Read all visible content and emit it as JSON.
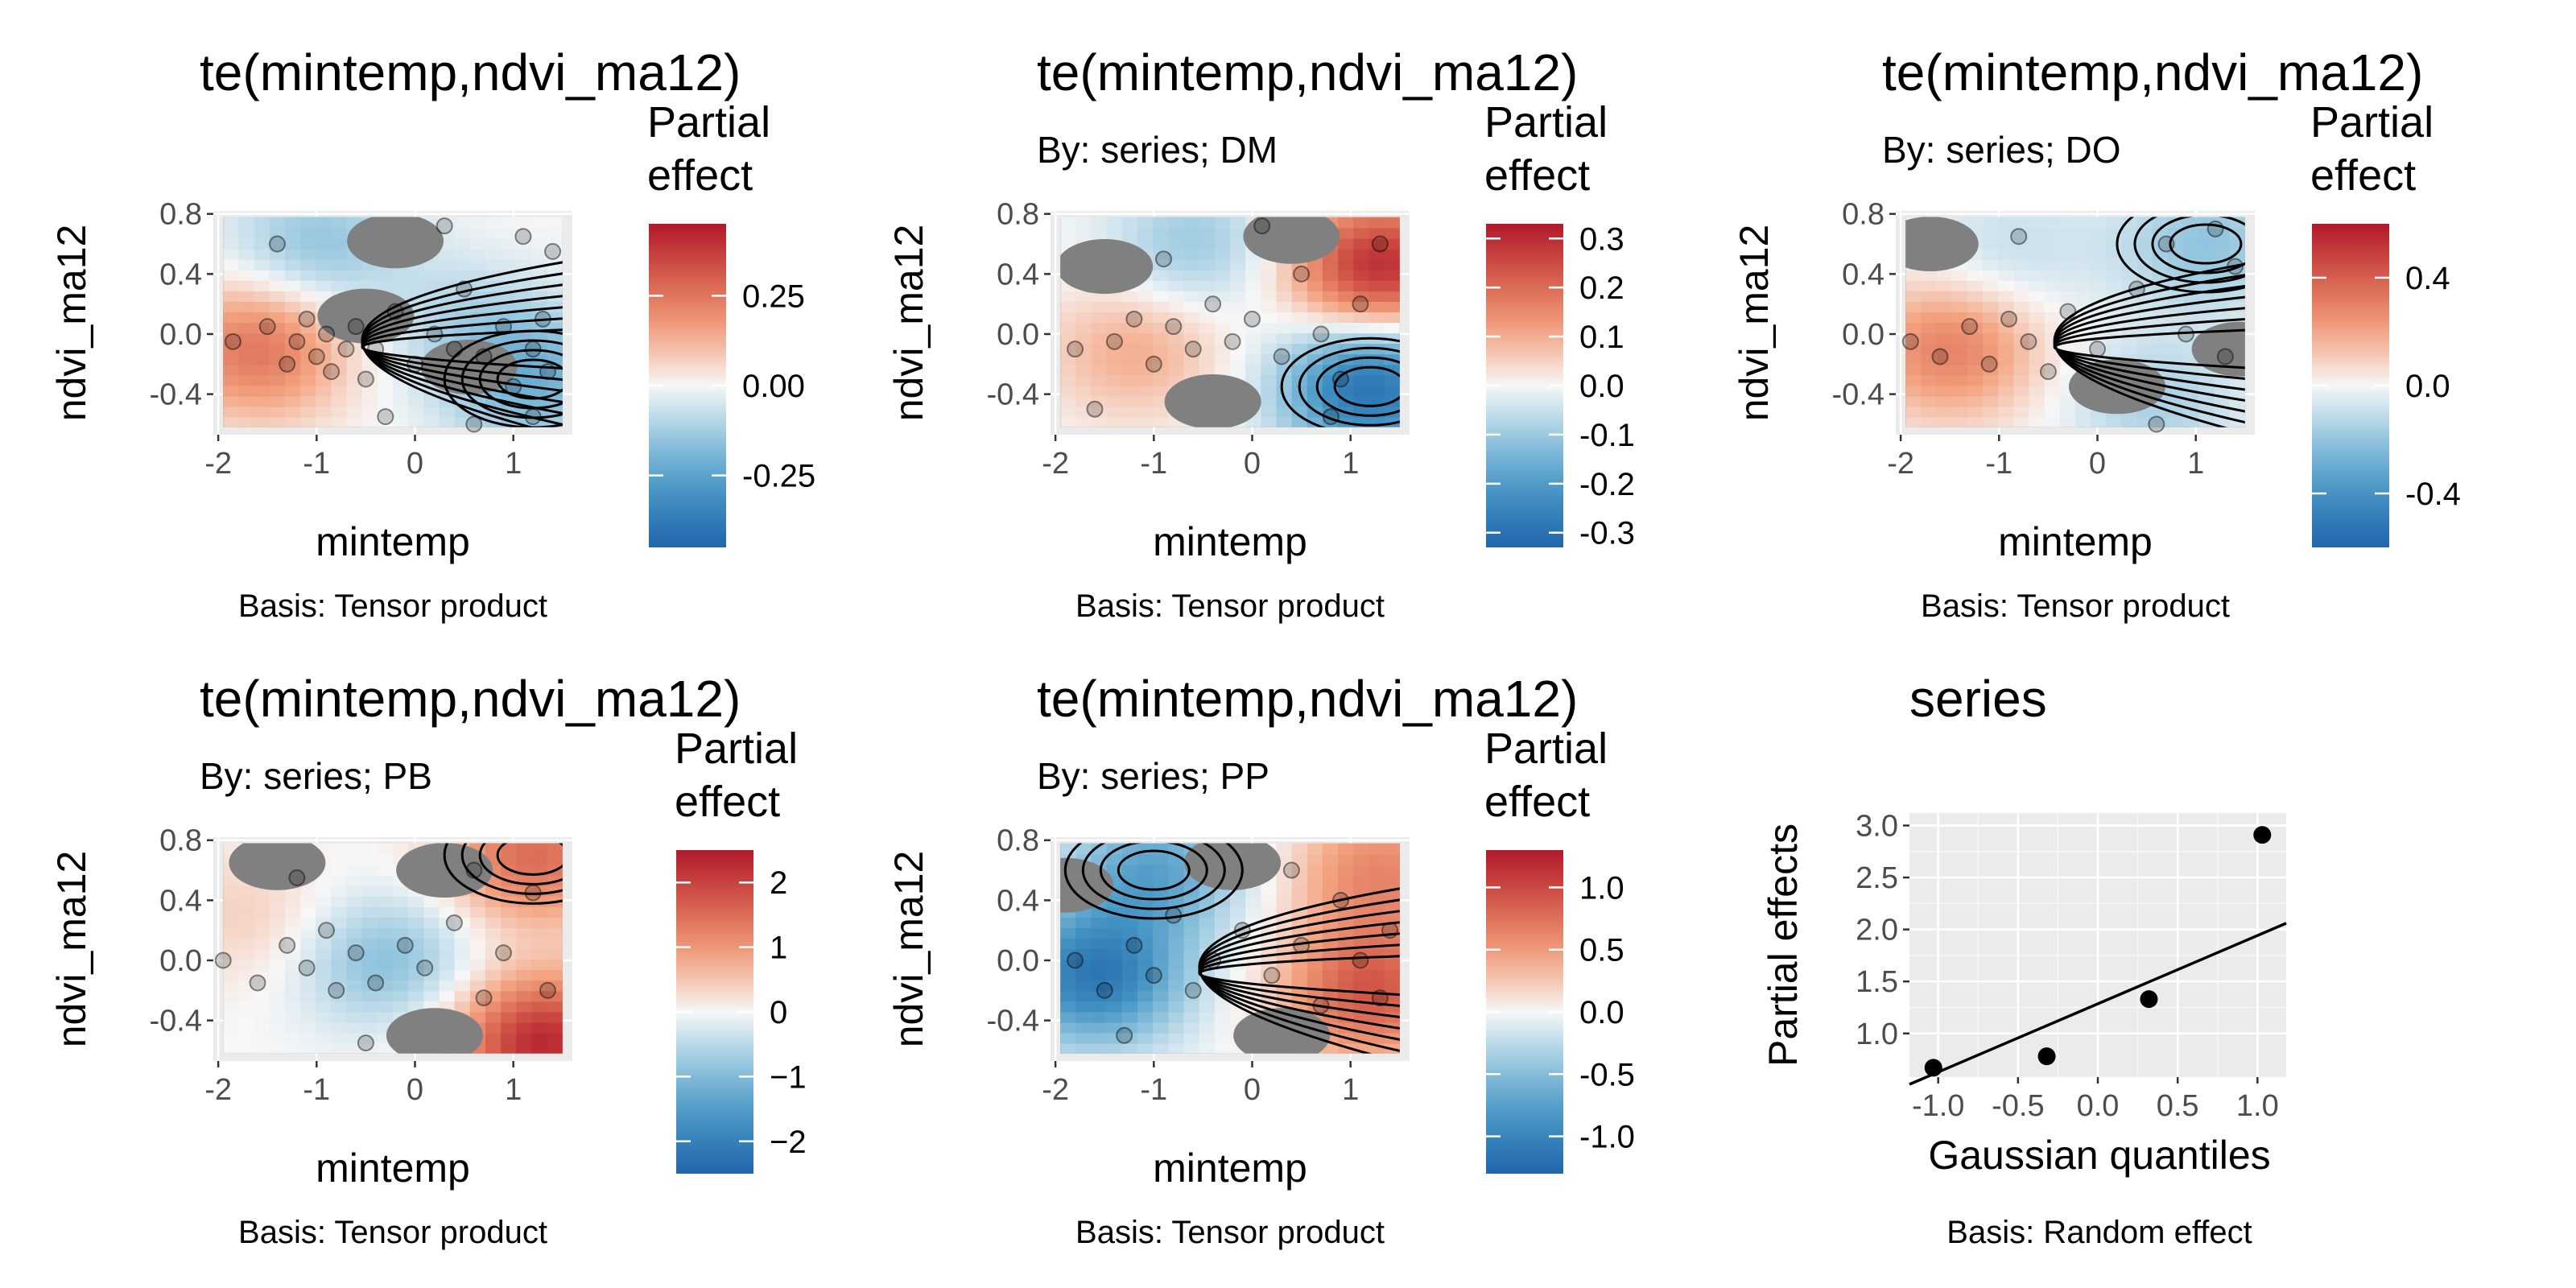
{
  "chart_data": [
    {
      "type": "heatmap",
      "title": "te(mintemp,ndvi_ma12)",
      "subtitle": "",
      "xlabel": "mintemp",
      "ylabel": "ndvi_ma12",
      "caption": "Basis: Tensor product",
      "legend_title": [
        "Partial",
        "effect"
      ],
      "xlim": [
        -2.05,
        1.6
      ],
      "ylim": [
        -0.67,
        0.82
      ],
      "xticks": [
        -2,
        -1,
        0,
        1
      ],
      "yticks": [
        -0.4,
        0.0,
        0.4,
        0.8
      ],
      "ytick_labels": [
        "-0.4",
        "0.0",
        "0.4",
        "0.8"
      ],
      "legend_range": [
        -0.45,
        0.45
      ],
      "legend_ticks": [
        0.25,
        0.0,
        -0.25
      ],
      "legend_tick_labels": [
        "0.25",
        "0.00",
        "-0.25"
      ],
      "palette": "RdBu diverging (red = positive, blue = negative)",
      "surface": {
        "hotspots": [
          {
            "x": -1.6,
            "y": -0.1,
            "value": 0.25
          },
          {
            "x": 1.2,
            "y": -0.3,
            "value": -0.2
          },
          {
            "x": -1.0,
            "y": 0.6,
            "value": -0.15
          },
          {
            "x": 0.5,
            "y": 0.1,
            "value": -0.08
          }
        ],
        "missing_regions": [
          {
            "x": -0.2,
            "y": 0.62
          },
          {
            "x": 0.55,
            "y": -0.22
          },
          {
            "x": -0.5,
            "y": 0.12
          }
        ]
      },
      "points": [
        [
          -1.85,
          -0.05
        ],
        [
          -1.5,
          0.05
        ],
        [
          -1.3,
          -0.2
        ],
        [
          -1.2,
          -0.05
        ],
        [
          -1.1,
          0.1
        ],
        [
          -1.0,
          -0.15
        ],
        [
          -0.9,
          0.0
        ],
        [
          -0.85,
          -0.25
        ],
        [
          -0.7,
          -0.1
        ],
        [
          -0.6,
          0.05
        ],
        [
          -0.5,
          -0.3
        ],
        [
          -0.4,
          -0.1
        ],
        [
          -0.2,
          0.15
        ],
        [
          0.0,
          -0.2
        ],
        [
          0.2,
          0.0
        ],
        [
          0.4,
          -0.1
        ],
        [
          0.5,
          0.3
        ],
        [
          0.7,
          -0.15
        ],
        [
          0.9,
          0.05
        ],
        [
          1.0,
          -0.35
        ],
        [
          1.1,
          0.65
        ],
        [
          1.2,
          -0.1
        ],
        [
          1.3,
          0.1
        ],
        [
          1.35,
          -0.25
        ],
        [
          1.4,
          0.55
        ],
        [
          0.3,
          0.72
        ],
        [
          -1.4,
          0.6
        ],
        [
          -0.3,
          -0.55
        ],
        [
          0.6,
          -0.6
        ],
        [
          1.2,
          -0.55
        ]
      ]
    },
    {
      "type": "heatmap",
      "title": "te(mintemp,ndvi_ma12)",
      "subtitle": "By: series; DM",
      "xlabel": "mintemp",
      "ylabel": "ndvi_ma12",
      "caption": "Basis: Tensor product",
      "legend_title": [
        "Partial",
        "effect"
      ],
      "xlim": [
        -2.05,
        1.6
      ],
      "ylim": [
        -0.67,
        0.82
      ],
      "xticks": [
        -2,
        -1,
        0,
        1
      ],
      "yticks": [
        -0.4,
        0.0,
        0.4,
        0.8
      ],
      "ytick_labels": [
        "-0.4",
        "0.0",
        "0.4",
        "0.8"
      ],
      "legend_range": [
        -0.33,
        0.33
      ],
      "legend_ticks": [
        0.3,
        0.2,
        0.1,
        0.0,
        -0.1,
        -0.2,
        -0.3
      ],
      "legend_tick_labels": [
        "0.3",
        "0.2",
        "0.1",
        "0.0",
        "-0.1",
        "-0.2",
        "-0.3"
      ],
      "palette": "RdBu diverging (red = positive, blue = negative)",
      "surface": {
        "hotspots": [
          {
            "x": 1.3,
            "y": 0.45,
            "value": 0.3
          },
          {
            "x": 1.2,
            "y": -0.35,
            "value": -0.3
          },
          {
            "x": -1.2,
            "y": -0.1,
            "value": 0.1
          },
          {
            "x": -0.6,
            "y": 0.6,
            "value": -0.1
          }
        ],
        "missing_regions": [
          {
            "x": -1.5,
            "y": 0.45
          },
          {
            "x": 0.4,
            "y": 0.65
          },
          {
            "x": -0.4,
            "y": -0.45
          }
        ]
      },
      "points": [
        [
          -1.8,
          -0.1
        ],
        [
          -1.4,
          -0.05
        ],
        [
          -1.2,
          0.1
        ],
        [
          -1.0,
          -0.2
        ],
        [
          -0.8,
          0.05
        ],
        [
          -0.6,
          -0.1
        ],
        [
          -0.4,
          0.2
        ],
        [
          -0.2,
          -0.05
        ],
        [
          0.0,
          0.1
        ],
        [
          0.3,
          -0.15
        ],
        [
          0.5,
          0.4
        ],
        [
          0.7,
          0.0
        ],
        [
          0.9,
          -0.3
        ],
        [
          1.1,
          0.2
        ],
        [
          1.3,
          0.6
        ],
        [
          -0.9,
          0.5
        ],
        [
          0.1,
          0.72
        ],
        [
          -1.6,
          -0.5
        ],
        [
          0.8,
          -0.55
        ]
      ]
    },
    {
      "type": "heatmap",
      "title": "te(mintemp,ndvi_ma12)",
      "subtitle": "By: series; DO",
      "xlabel": "mintemp",
      "ylabel": "ndvi_ma12",
      "caption": "Basis: Tensor product",
      "legend_title": [
        "Partial",
        "effect"
      ],
      "xlim": [
        -2.05,
        1.6
      ],
      "ylim": [
        -0.67,
        0.82
      ],
      "xticks": [
        -2,
        -1,
        0,
        1
      ],
      "yticks": [
        -0.4,
        0.0,
        0.4,
        0.8
      ],
      "ytick_labels": [
        "-0.4",
        "0.0",
        "0.4",
        "0.8"
      ],
      "legend_range": [
        -0.6,
        0.6
      ],
      "legend_ticks": [
        0.4,
        0.0,
        -0.4
      ],
      "legend_tick_labels": [
        "0.4",
        "0.0",
        "-0.4"
      ],
      "palette": "RdBu diverging (red = positive, blue = negative)",
      "surface": {
        "hotspots": [
          {
            "x": -1.5,
            "y": -0.1,
            "value": 0.3
          },
          {
            "x": 1.1,
            "y": 0.6,
            "value": -0.2
          },
          {
            "x": 0.6,
            "y": -0.45,
            "value": -0.15
          },
          {
            "x": -0.9,
            "y": 0.55,
            "value": -0.1
          }
        ],
        "missing_regions": [
          {
            "x": -1.7,
            "y": 0.6
          },
          {
            "x": 0.2,
            "y": -0.35
          },
          {
            "x": 1.45,
            "y": -0.1
          }
        ]
      },
      "points": [
        [
          -1.9,
          -0.05
        ],
        [
          -1.6,
          -0.15
        ],
        [
          -1.3,
          0.05
        ],
        [
          -1.1,
          -0.2
        ],
        [
          -0.9,
          0.1
        ],
        [
          -0.7,
          -0.05
        ],
        [
          -0.5,
          -0.25
        ],
        [
          -0.3,
          0.15
        ],
        [
          0.0,
          -0.1
        ],
        [
          0.4,
          0.3
        ],
        [
          0.7,
          0.6
        ],
        [
          0.9,
          0.0
        ],
        [
          1.2,
          0.7
        ],
        [
          1.3,
          -0.15
        ],
        [
          1.4,
          0.45
        ],
        [
          -0.8,
          0.65
        ],
        [
          0.6,
          -0.6
        ]
      ]
    },
    {
      "type": "heatmap",
      "title": "te(mintemp,ndvi_ma12)",
      "subtitle": "By: series; PB",
      "xlabel": "mintemp",
      "ylabel": "ndvi_ma12",
      "caption": "Basis: Tensor product",
      "legend_title": [
        "Partial",
        "effect"
      ],
      "xlim": [
        -2.05,
        1.6
      ],
      "ylim": [
        -0.67,
        0.82
      ],
      "xticks": [
        -2,
        -1,
        0,
        1
      ],
      "yticks": [
        -0.4,
        0.0,
        0.4,
        0.8
      ],
      "ytick_labels": [
        "-0.4",
        "0.0",
        "0.4",
        "0.8"
      ],
      "legend_range": [
        -2.5,
        2.5
      ],
      "legend_ticks": [
        2,
        1,
        0,
        -1,
        -2
      ],
      "legend_tick_labels": [
        "2",
        "1",
        "0",
        "−1",
        "−2"
      ],
      "palette": "RdBu diverging (red = positive, blue = negative)",
      "surface": {
        "hotspots": [
          {
            "x": 1.3,
            "y": -0.55,
            "value": 2.3
          },
          {
            "x": 1.2,
            "y": 0.7,
            "value": 1.5
          },
          {
            "x": -0.3,
            "y": 0.0,
            "value": -0.9
          },
          {
            "x": -1.7,
            "y": 0.3,
            "value": 0.4
          }
        ],
        "missing_regions": [
          {
            "x": -1.4,
            "y": 0.65
          },
          {
            "x": 0.3,
            "y": 0.6
          },
          {
            "x": 0.2,
            "y": -0.5
          }
        ]
      },
      "points": [
        [
          -1.95,
          0.0
        ],
        [
          -1.6,
          -0.15
        ],
        [
          -1.3,
          0.1
        ],
        [
          -1.1,
          -0.05
        ],
        [
          -0.9,
          0.2
        ],
        [
          -0.8,
          -0.2
        ],
        [
          -0.6,
          0.05
        ],
        [
          -0.4,
          -0.15
        ],
        [
          -0.1,
          0.1
        ],
        [
          0.1,
          -0.05
        ],
        [
          0.4,
          0.25
        ],
        [
          0.7,
          -0.25
        ],
        [
          0.9,
          0.05
        ],
        [
          1.2,
          0.45
        ],
        [
          1.35,
          -0.2
        ],
        [
          -1.2,
          0.55
        ],
        [
          0.6,
          0.6
        ],
        [
          -0.5,
          -0.55
        ]
      ]
    },
    {
      "type": "heatmap",
      "title": "te(mintemp,ndvi_ma12)",
      "subtitle": "By: series; PP",
      "xlabel": "mintemp",
      "ylabel": "ndvi_ma12",
      "caption": "Basis: Tensor product",
      "legend_title": [
        "Partial",
        "effect"
      ],
      "xlim": [
        -2.05,
        1.6
      ],
      "ylim": [
        -0.67,
        0.82
      ],
      "xticks": [
        -2,
        -1,
        0,
        1
      ],
      "yticks": [
        -0.4,
        0.0,
        0.4,
        0.8
      ],
      "ytick_labels": [
        "-0.4",
        "0.0",
        "0.4",
        "0.8"
      ],
      "legend_range": [
        -1.3,
        1.3
      ],
      "legend_ticks": [
        1.0,
        0.5,
        0.0,
        -0.5,
        -1.0
      ],
      "legend_tick_labels": [
        "1.0",
        "0.5",
        "0.0",
        "-0.5",
        "-1.0"
      ],
      "palette": "RdBu diverging (red = positive, blue = negative)",
      "surface": {
        "hotspots": [
          {
            "x": -1.6,
            "y": -0.1,
            "value": -1.1
          },
          {
            "x": -1.0,
            "y": 0.6,
            "value": -0.7
          },
          {
            "x": 1.2,
            "y": -0.2,
            "value": 0.9
          },
          {
            "x": 1.3,
            "y": 0.6,
            "value": 0.6
          }
        ],
        "missing_regions": [
          {
            "x": -0.2,
            "y": 0.65
          },
          {
            "x": 0.3,
            "y": -0.5
          },
          {
            "x": -1.9,
            "y": 0.5
          }
        ]
      },
      "points": [
        [
          -1.8,
          0.0
        ],
        [
          -1.5,
          -0.2
        ],
        [
          -1.2,
          0.1
        ],
        [
          -1.0,
          -0.1
        ],
        [
          -0.8,
          0.3
        ],
        [
          -0.6,
          -0.2
        ],
        [
          -0.4,
          0.0
        ],
        [
          -0.1,
          0.2
        ],
        [
          0.2,
          -0.1
        ],
        [
          0.5,
          0.1
        ],
        [
          0.7,
          -0.3
        ],
        [
          0.9,
          0.4
        ],
        [
          1.1,
          0.0
        ],
        [
          1.3,
          -0.25
        ],
        [
          1.4,
          0.2
        ],
        [
          0.4,
          0.6
        ],
        [
          -1.3,
          -0.5
        ]
      ]
    },
    {
      "type": "scatter",
      "title": "series",
      "xlabel": "Gaussian quantiles",
      "ylabel": "Partial effects",
      "caption": "Basis: Random effect",
      "xlim": [
        -1.18,
        1.18
      ],
      "ylim": [
        0.58,
        3.12
      ],
      "xticks": [
        -1.0,
        -0.5,
        0.0,
        0.5,
        1.0
      ],
      "xtick_labels": [
        "-1.0",
        "-0.5",
        "0.0",
        "0.5",
        "1.0"
      ],
      "yticks": [
        1.0,
        1.5,
        2.0,
        2.5,
        3.0
      ],
      "ytick_labels": [
        "1.0",
        "1.5",
        "2.0",
        "2.5",
        "3.0"
      ],
      "grid": true,
      "points": [
        {
          "x": -1.03,
          "y": 0.67
        },
        {
          "x": -0.32,
          "y": 0.78
        },
        {
          "x": 0.32,
          "y": 1.33
        },
        {
          "x": 1.03,
          "y": 2.91
        }
      ],
      "reference_line": {
        "x": [
          -1.18,
          1.18
        ],
        "y": [
          0.51,
          2.06
        ]
      }
    }
  ]
}
